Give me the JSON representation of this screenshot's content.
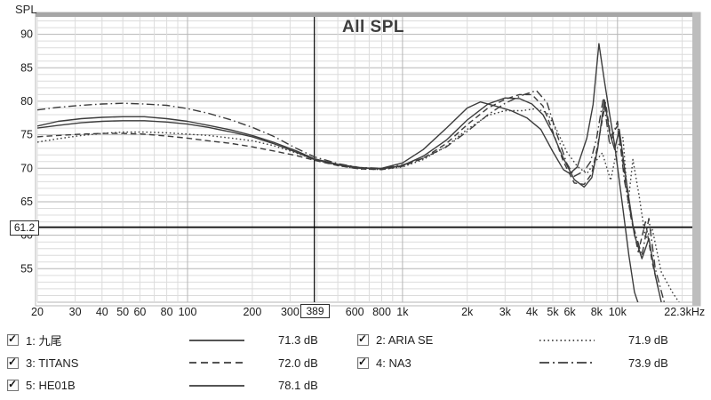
{
  "window_title": "All SPL",
  "chart": {
    "title": "All SPL",
    "y_axis_label": "SPL",
    "cursor": {
      "freq": 389,
      "freq_label": "389",
      "spl": 61.2,
      "spl_label": "61.2"
    }
  },
  "colors": {
    "curve": "#3c3c3c",
    "grid_minor": "#dcdcdc",
    "grid_major": "#b6b6b6",
    "frame": "#a6a6a6",
    "cursor": "#000000",
    "title_text": "#3d3d3d",
    "tick_text": "#1c1c1c"
  },
  "chart_data": {
    "type": "line",
    "title": "All SPL",
    "xlabel": "Frequency (Hz)",
    "ylabel": "SPL",
    "x_scale": "log",
    "xlim": [
      20,
      22300
    ],
    "ylim": [
      50,
      92.6
    ],
    "grid": "on",
    "legend_position": "bottom",
    "y_ticks": [
      90,
      85,
      80,
      75,
      70,
      65,
      60,
      55
    ],
    "x_tick_labels": [
      {
        "label": "20",
        "f": 20
      },
      {
        "label": "30",
        "f": 30
      },
      {
        "label": "40",
        "f": 40
      },
      {
        "label": "50",
        "f": 50
      },
      {
        "label": "60",
        "f": 60
      },
      {
        "label": "80",
        "f": 80
      },
      {
        "label": "100",
        "f": 100
      },
      {
        "label": "200",
        "f": 200
      },
      {
        "label": "300",
        "f": 300
      },
      {
        "label": "600",
        "f": 600
      },
      {
        "label": "800",
        "f": 800
      },
      {
        "label": "1k",
        "f": 1000
      },
      {
        "label": "2k",
        "f": 2000
      },
      {
        "label": "3k",
        "f": 3000
      },
      {
        "label": "4k",
        "f": 4000
      },
      {
        "label": "5k",
        "f": 5000
      },
      {
        "label": "6k",
        "f": 6000
      },
      {
        "label": "8k",
        "f": 8000
      },
      {
        "label": "10k",
        "f": 10000
      },
      {
        "label": "22.3kHz",
        "f": 20500
      }
    ],
    "cursor": {
      "freq": 389,
      "spl": 61.2
    },
    "series": [
      {
        "name": "1: 九尾",
        "style": "solid",
        "checked": true,
        "avg": "71.3 dB",
        "points": [
          [
            20,
            76.3
          ],
          [
            25,
            77.0
          ],
          [
            32,
            77.4
          ],
          [
            40,
            77.6
          ],
          [
            50,
            77.7
          ],
          [
            63,
            77.7
          ],
          [
            80,
            77.4
          ],
          [
            100,
            77.0
          ],
          [
            125,
            76.4
          ],
          [
            160,
            75.7
          ],
          [
            200,
            74.9
          ],
          [
            250,
            73.9
          ],
          [
            320,
            72.6
          ],
          [
            389,
            71.4
          ],
          [
            500,
            70.6
          ],
          [
            630,
            70.1
          ],
          [
            800,
            69.9
          ],
          [
            1000,
            70.4
          ],
          [
            1250,
            71.8
          ],
          [
            1600,
            74.2
          ],
          [
            2000,
            77.2
          ],
          [
            2500,
            79.6
          ],
          [
            3000,
            80.5
          ],
          [
            3500,
            80.4
          ],
          [
            4000,
            79.6
          ],
          [
            4500,
            78.0
          ],
          [
            5000,
            75.2
          ],
          [
            5600,
            71.5
          ],
          [
            6300,
            68.3
          ],
          [
            7000,
            67.2
          ],
          [
            7600,
            68.6
          ],
          [
            8100,
            73.0
          ],
          [
            8700,
            80.2
          ],
          [
            9200,
            75.3
          ],
          [
            9700,
            72.8
          ],
          [
            10200,
            75.8
          ],
          [
            11000,
            68.0
          ],
          [
            12000,
            60.0
          ],
          [
            13000,
            56.5
          ],
          [
            14000,
            59.5
          ],
          [
            15000,
            54.0
          ],
          [
            16000,
            50.0
          ]
        ]
      },
      {
        "name": "2: ARIA SE",
        "style": "dotted",
        "checked": true,
        "avg": "71.9 dB",
        "points": [
          [
            20,
            73.9
          ],
          [
            25,
            74.4
          ],
          [
            32,
            74.9
          ],
          [
            40,
            75.2
          ],
          [
            50,
            75.4
          ],
          [
            63,
            75.4
          ],
          [
            80,
            75.3
          ],
          [
            100,
            75.1
          ],
          [
            125,
            74.9
          ],
          [
            160,
            74.5
          ],
          [
            200,
            74.1
          ],
          [
            250,
            73.4
          ],
          [
            320,
            72.3
          ],
          [
            389,
            71.3
          ],
          [
            500,
            70.4
          ],
          [
            630,
            69.9
          ],
          [
            800,
            69.8
          ],
          [
            1000,
            70.2
          ],
          [
            1250,
            71.3
          ],
          [
            1600,
            73.3
          ],
          [
            2000,
            75.8
          ],
          [
            2500,
            77.9
          ],
          [
            3000,
            78.6
          ],
          [
            3600,
            78.6
          ],
          [
            4200,
            78.9
          ],
          [
            4700,
            78.3
          ],
          [
            5200,
            75.8
          ],
          [
            5800,
            72.5
          ],
          [
            6500,
            70.3
          ],
          [
            7200,
            69.2
          ],
          [
            7900,
            71.0
          ],
          [
            8500,
            72.3
          ],
          [
            9300,
            68.2
          ],
          [
            10000,
            73.2
          ],
          [
            10600,
            74.6
          ],
          [
            11200,
            64.8
          ],
          [
            11800,
            71.3
          ],
          [
            12600,
            66.0
          ],
          [
            13500,
            59.5
          ],
          [
            14500,
            61.0
          ],
          [
            16000,
            54.5
          ],
          [
            18000,
            51.5
          ],
          [
            19500,
            49.8
          ]
        ]
      },
      {
        "name": "3: TITANS",
        "style": "dashed",
        "checked": true,
        "avg": "72.0 dB",
        "points": [
          [
            20,
            74.7
          ],
          [
            25,
            74.9
          ],
          [
            32,
            75.1
          ],
          [
            40,
            75.2
          ],
          [
            50,
            75.2
          ],
          [
            63,
            75.1
          ],
          [
            80,
            74.8
          ],
          [
            100,
            74.5
          ],
          [
            125,
            74.1
          ],
          [
            160,
            73.7
          ],
          [
            200,
            73.2
          ],
          [
            250,
            72.6
          ],
          [
            320,
            71.9
          ],
          [
            389,
            71.2
          ],
          [
            500,
            70.4
          ],
          [
            630,
            69.9
          ],
          [
            800,
            69.8
          ],
          [
            1000,
            70.3
          ],
          [
            1250,
            71.5
          ],
          [
            1600,
            73.7
          ],
          [
            2000,
            76.5
          ],
          [
            2500,
            79.0
          ],
          [
            3000,
            80.3
          ],
          [
            3500,
            81.0
          ],
          [
            4000,
            81.0
          ],
          [
            4500,
            79.3
          ],
          [
            5000,
            75.5
          ],
          [
            5600,
            71.0
          ],
          [
            6300,
            67.8
          ],
          [
            7000,
            67.6
          ],
          [
            7600,
            69.2
          ],
          [
            8100,
            73.5
          ],
          [
            8800,
            79.8
          ],
          [
            9300,
            74.8
          ],
          [
            10000,
            76.3
          ],
          [
            10700,
            70.0
          ],
          [
            11500,
            63.0
          ],
          [
            12500,
            57.5
          ],
          [
            13500,
            62.0
          ],
          [
            14500,
            56.0
          ],
          [
            15500,
            52.0
          ]
        ]
      },
      {
        "name": "4: NA3",
        "style": "dash-dot",
        "checked": true,
        "avg": "73.9 dB",
        "points": [
          [
            20,
            78.7
          ],
          [
            25,
            79.1
          ],
          [
            32,
            79.4
          ],
          [
            40,
            79.6
          ],
          [
            50,
            79.7
          ],
          [
            63,
            79.6
          ],
          [
            80,
            79.4
          ],
          [
            100,
            78.9
          ],
          [
            125,
            78.2
          ],
          [
            160,
            77.2
          ],
          [
            200,
            76.1
          ],
          [
            250,
            74.8
          ],
          [
            320,
            73.0
          ],
          [
            389,
            71.7
          ],
          [
            500,
            70.7
          ],
          [
            630,
            70.1
          ],
          [
            800,
            70.0
          ],
          [
            1000,
            70.5
          ],
          [
            1250,
            71.5
          ],
          [
            1600,
            73.2
          ],
          [
            2000,
            75.5
          ],
          [
            2500,
            78.0
          ],
          [
            3000,
            79.7
          ],
          [
            3600,
            80.9
          ],
          [
            4200,
            81.6
          ],
          [
            4700,
            79.8
          ],
          [
            5200,
            75.3
          ],
          [
            5800,
            70.8
          ],
          [
            6300,
            68.8
          ],
          [
            7000,
            69.6
          ],
          [
            7500,
            71.0
          ],
          [
            8000,
            74.5
          ],
          [
            8600,
            80.5
          ],
          [
            9200,
            73.5
          ],
          [
            10000,
            77.0
          ],
          [
            10800,
            68.0
          ],
          [
            11800,
            61.5
          ],
          [
            13000,
            57.0
          ],
          [
            14000,
            62.5
          ],
          [
            15000,
            55.0
          ],
          [
            16500,
            50.0
          ]
        ]
      },
      {
        "name": "5: HE01B",
        "style": "solid",
        "checked": true,
        "avg": "78.1 dB",
        "points": [
          [
            20,
            76.0
          ],
          [
            25,
            76.4
          ],
          [
            32,
            76.8
          ],
          [
            40,
            77.0
          ],
          [
            50,
            77.1
          ],
          [
            63,
            77.1
          ],
          [
            80,
            76.9
          ],
          [
            100,
            76.6
          ],
          [
            125,
            76.1
          ],
          [
            160,
            75.4
          ],
          [
            200,
            74.7
          ],
          [
            250,
            73.7
          ],
          [
            320,
            72.4
          ],
          [
            389,
            71.3
          ],
          [
            500,
            70.5
          ],
          [
            630,
            70.0
          ],
          [
            800,
            70.0
          ],
          [
            1000,
            70.8
          ],
          [
            1250,
            72.8
          ],
          [
            1600,
            76.0
          ],
          [
            2000,
            79.0
          ],
          [
            2300,
            79.9
          ],
          [
            2700,
            79.3
          ],
          [
            3200,
            78.6
          ],
          [
            3800,
            77.5
          ],
          [
            4400,
            75.8
          ],
          [
            5000,
            72.5
          ],
          [
            5600,
            69.8
          ],
          [
            6000,
            69.2
          ],
          [
            6500,
            70.2
          ],
          [
            7200,
            74.5
          ],
          [
            7700,
            79.5
          ],
          [
            8200,
            88.6
          ],
          [
            8700,
            83.0
          ],
          [
            9200,
            78.0
          ],
          [
            9700,
            73.5
          ],
          [
            10500,
            65.0
          ],
          [
            11300,
            57.0
          ],
          [
            12000,
            51.5
          ],
          [
            12500,
            49.8
          ]
        ]
      }
    ]
  }
}
